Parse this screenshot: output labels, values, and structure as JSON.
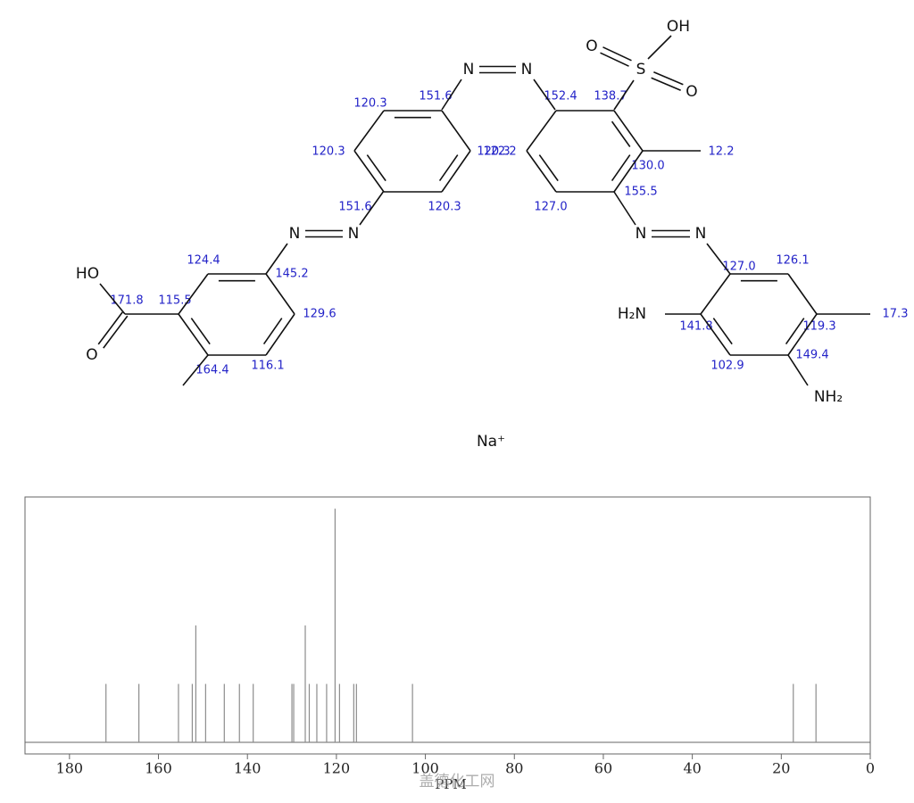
{
  "structure": {
    "atoms": [
      "N",
      "N",
      "N",
      "N",
      "N",
      "N",
      "S",
      "O",
      "O",
      "OH",
      "HO",
      "O",
      "H₂N",
      "NH₂",
      "Na⁺"
    ],
    "shifts": [
      "151.6",
      "120.3",
      "120.3",
      "151.6",
      "120.3",
      "120.3",
      "122.2",
      "152.4",
      "138.7",
      "130.0",
      "12.2",
      "155.5",
      "127.0",
      "127.0",
      "126.1",
      "119.3",
      "17.3",
      "141.8",
      "149.4",
      "102.9",
      "124.4",
      "145.2",
      "129.6",
      "116.1",
      "164.4",
      "115.5",
      "171.8"
    ]
  },
  "chart_data": {
    "type": "stick",
    "color": "#8c8c8c",
    "x": [
      171.8,
      164.4,
      155.5,
      152.4,
      151.6,
      149.4,
      145.2,
      141.8,
      138.7,
      130.0,
      129.6,
      127.0,
      126.1,
      124.4,
      122.2,
      120.3,
      119.3,
      116.1,
      115.5,
      102.9,
      17.3,
      12.2
    ],
    "values": [
      1,
      1,
      1,
      1,
      2,
      1,
      1,
      1,
      1,
      1,
      1,
      2,
      1,
      1,
      1,
      4,
      1,
      1,
      1,
      1,
      1,
      1
    ],
    "xlim": [
      190,
      0
    ],
    "xticks": [
      180,
      160,
      140,
      120,
      100,
      80,
      60,
      40,
      20,
      0
    ],
    "ylim": [
      0,
      4.2
    ],
    "xlabel": "PPM"
  },
  "watermark": "盖德化工网"
}
